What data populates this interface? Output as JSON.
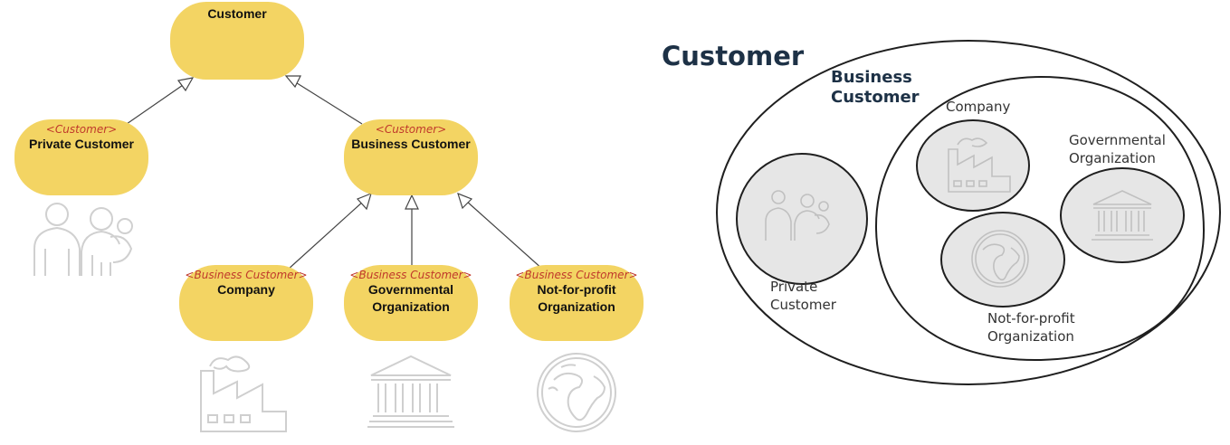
{
  "hierarchy": {
    "customer": {
      "title": "Customer"
    },
    "private_customer": {
      "stereotype": "<Customer>",
      "title": "Private Customer"
    },
    "business_customer": {
      "stereotype": "<Customer>",
      "title": "Business Customer"
    },
    "company": {
      "stereotype": "<Business Customer>",
      "title": "Company"
    },
    "governmental": {
      "stereotype": "<Business Customer>",
      "title_line1": "Governmental",
      "title_line2": "Organization"
    },
    "nonprofit": {
      "stereotype": "<Business Customer>",
      "title_line1": "Not-for-profit",
      "title_line2": "Organization"
    }
  },
  "venn": {
    "customer_label": "Customer",
    "business_label_line1": "Business",
    "business_label_line2": "Customer",
    "company_label": "Company",
    "governmental_line1": "Governmental",
    "governmental_line2": "Organization",
    "private_line1": "Private",
    "private_line2": "Customer",
    "nonprofit_line1": "Not-for-profit",
    "nonprofit_line2": "Organization"
  },
  "colors": {
    "node_fill": "#f3d463",
    "stereotype": "#c0392b",
    "venn_title": "#1d3146",
    "icon_stroke": "#c8c8c8",
    "bubble_fill": "#e6e6e6"
  },
  "icons": [
    "family-icon",
    "factory-icon",
    "government-building-icon",
    "globe-icon"
  ]
}
